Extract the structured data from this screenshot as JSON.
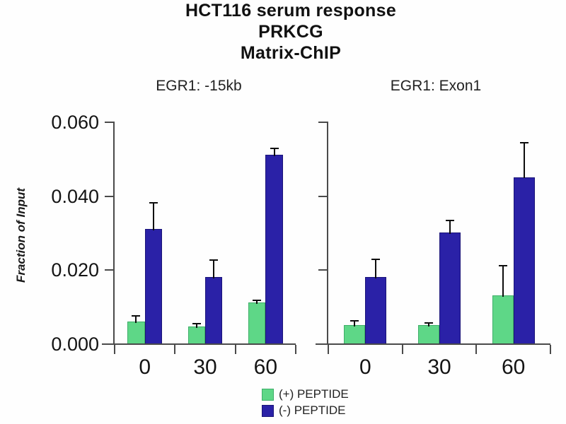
{
  "figure_title": {
    "line1": "HCT116 serum response",
    "line2": "PRKCG",
    "line3": "Matrix-ChIP"
  },
  "legend": {
    "position": "bottom-center",
    "entries": [
      {
        "label": "(+) PEPTIDE",
        "color": "#5ed787",
        "border_color": "#3fae69"
      },
      {
        "label": "(-) PEPTIDE",
        "color": "#2a21a7",
        "border_color": "#1a1478"
      }
    ]
  },
  "chart_data": [
    {
      "type": "bar",
      "title": "EGR1: -15kb",
      "categories": [
        "0",
        "30",
        "60"
      ],
      "series": [
        {
          "name": "(+) PEPTIDE",
          "color": "#5ed787",
          "border_color": "#3fae69",
          "values": [
            0.006,
            0.0045,
            0.011
          ],
          "errors_plus": [
            0.0014,
            0.0008,
            0.0006
          ]
        },
        {
          "name": "(-) PEPTIDE",
          "color": "#2a21a7",
          "border_color": "#1a1478",
          "values": [
            0.031,
            0.018,
            0.051
          ],
          "errors_plus": [
            0.007,
            0.0045,
            0.0017
          ]
        }
      ],
      "xlabel": "",
      "ylabel": "Fraction of Input",
      "ylim": [
        0,
        0.06
      ],
      "ytick_labels": [
        "0.000",
        "0.020",
        "0.040",
        "0.060"
      ],
      "grid": false,
      "error_bars": "plus-direction-with-cap"
    },
    {
      "type": "bar",
      "title": "EGR1: Exon1",
      "categories": [
        "0",
        "30",
        "60"
      ],
      "series": [
        {
          "name": "(+) PEPTIDE",
          "color": "#5ed787",
          "border_color": "#3fae69",
          "values": [
            0.005,
            0.005,
            0.013
          ],
          "errors_plus": [
            0.0012,
            0.0005,
            0.008
          ]
        },
        {
          "name": "(-) PEPTIDE",
          "color": "#2a21a7",
          "border_color": "#1a1478",
          "values": [
            0.018,
            0.03,
            0.045
          ],
          "errors_plus": [
            0.0047,
            0.0033,
            0.0093
          ]
        }
      ],
      "xlabel": "",
      "ylabel": "Fraction of Input",
      "ylim": [
        0,
        0.06
      ],
      "ytick_labels": [
        "0.000",
        "0.020",
        "0.040",
        "0.060"
      ],
      "grid": false,
      "error_bars": "plus-direction-with-cap"
    }
  ]
}
